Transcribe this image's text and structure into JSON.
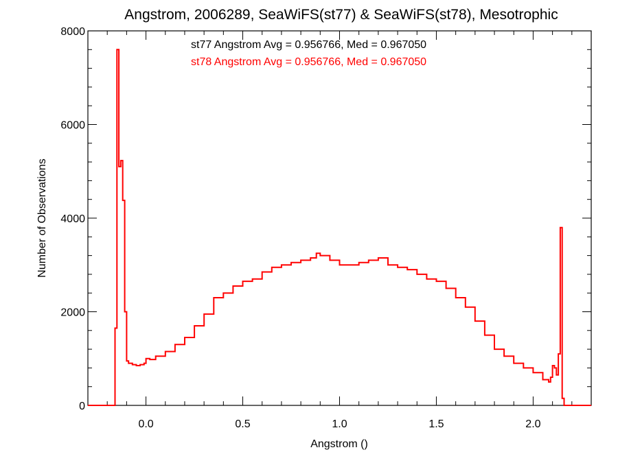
{
  "chart_data": {
    "type": "line",
    "step": true,
    "title": "Angstrom, 2006289, SeaWiFS(st77) & SeaWiFS(st78), Mesotrophic",
    "xlabel": "Angstrom ()",
    "ylabel": "Number of Observations",
    "xlim": [
      -0.3,
      2.3
    ],
    "ylim": [
      0,
      8000
    ],
    "x_ticks": [
      0.0,
      0.5,
      1.0,
      1.5,
      2.0
    ],
    "x_tick_labels": [
      "0.0",
      "0.5",
      "1.0",
      "1.5",
      "2.0"
    ],
    "y_ticks": [
      0,
      2000,
      4000,
      6000,
      8000
    ],
    "y_tick_labels": [
      "0",
      "2000",
      "4000",
      "6000",
      "8000"
    ],
    "grid": false,
    "annotations": [
      {
        "text": "st77 Angstrom Avg = 0.956766, Med = 0.967050",
        "color": "#000000"
      },
      {
        "text": "st78 Angstrom Avg = 0.956766, Med = 0.967050",
        "color": "#ff0000"
      }
    ],
    "series": [
      {
        "color": "#ff0000",
        "x": [
          -0.3,
          -0.16,
          -0.15,
          -0.14,
          -0.13,
          -0.12,
          -0.11,
          -0.1,
          -0.09,
          -0.07,
          -0.05,
          -0.03,
          -0.01,
          0.0,
          0.02,
          0.05,
          0.1,
          0.15,
          0.2,
          0.25,
          0.3,
          0.35,
          0.4,
          0.45,
          0.5,
          0.55,
          0.6,
          0.65,
          0.7,
          0.75,
          0.8,
          0.85,
          0.88,
          0.9,
          0.95,
          1.0,
          1.05,
          1.1,
          1.15,
          1.2,
          1.25,
          1.3,
          1.35,
          1.4,
          1.45,
          1.5,
          1.55,
          1.6,
          1.65,
          1.7,
          1.75,
          1.8,
          1.85,
          1.9,
          1.95,
          2.0,
          2.05,
          2.08,
          2.09,
          2.1,
          2.11,
          2.12,
          2.13,
          2.14,
          2.15,
          2.16,
          2.3
        ],
        "values": [
          0,
          1650,
          7600,
          5100,
          5230,
          4380,
          2000,
          950,
          900,
          870,
          850,
          870,
          900,
          1000,
          980,
          1050,
          1150,
          1300,
          1450,
          1700,
          1950,
          2300,
          2400,
          2550,
          2650,
          2700,
          2850,
          2950,
          3000,
          3050,
          3100,
          3150,
          3250,
          3200,
          3100,
          3000,
          3000,
          3050,
          3100,
          3150,
          3000,
          2950,
          2900,
          2800,
          2700,
          2650,
          2500,
          2300,
          2100,
          1800,
          1500,
          1200,
          1050,
          900,
          800,
          700,
          550,
          500,
          600,
          850,
          800,
          650,
          1100,
          3800,
          150,
          0,
          0
        ]
      }
    ]
  }
}
